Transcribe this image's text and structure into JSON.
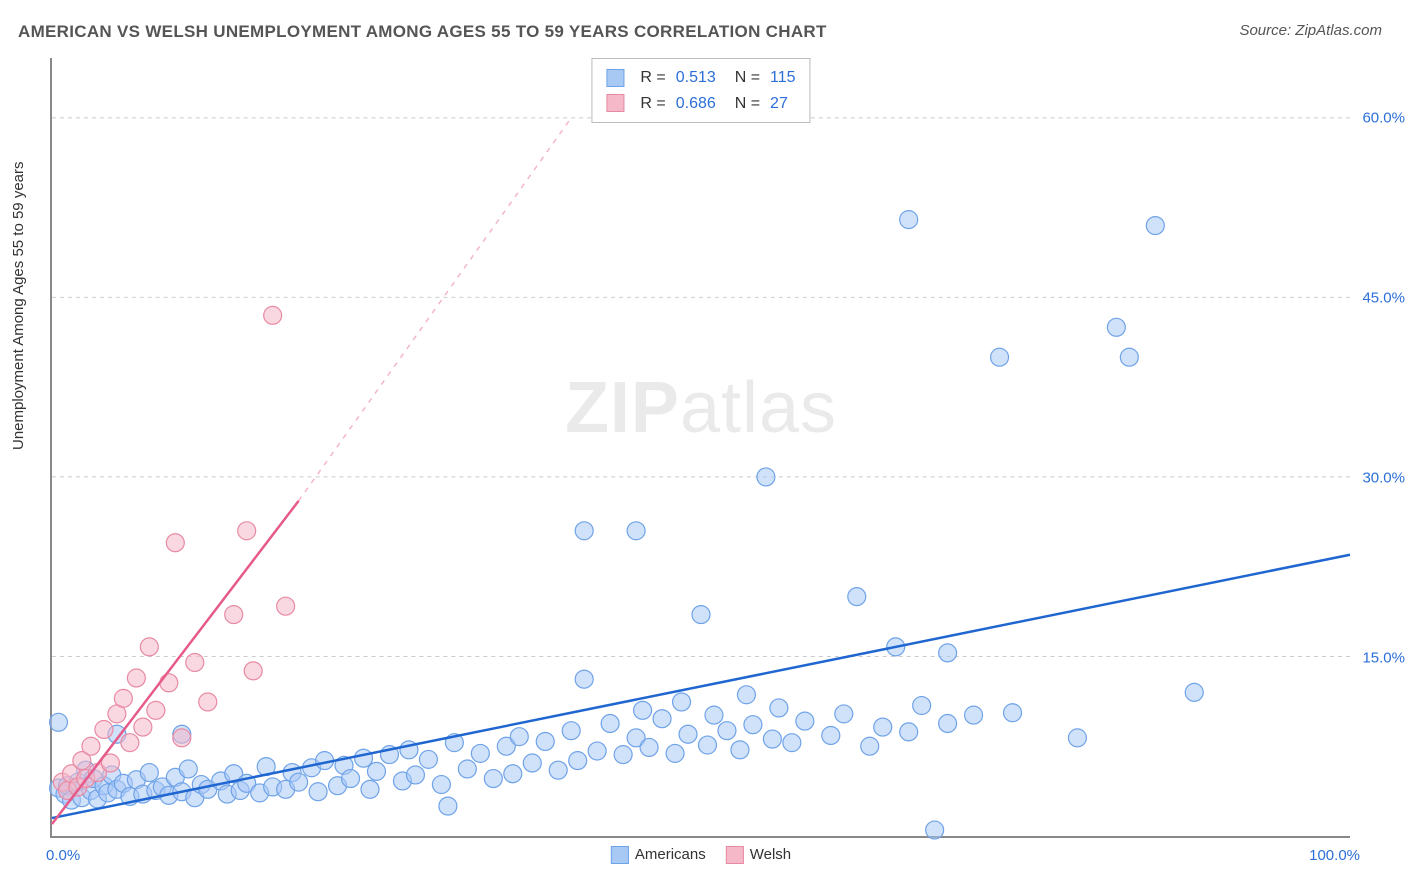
{
  "title": "AMERICAN VS WELSH UNEMPLOYMENT AMONG AGES 55 TO 59 YEARS CORRELATION CHART",
  "source": "Source: ZipAtlas.com",
  "y_axis_label": "Unemployment Among Ages 55 to 59 years",
  "watermark_bold": "ZIP",
  "watermark_light": "atlas",
  "chart": {
    "type": "scatter",
    "xlim": [
      0,
      100
    ],
    "ylim": [
      0,
      65
    ],
    "yticks": [
      15.0,
      30.0,
      45.0,
      60.0
    ],
    "ytick_labels": [
      "15.0%",
      "30.0%",
      "45.0%",
      "60.0%"
    ],
    "xtick_left": "0.0%",
    "xtick_right": "100.0%",
    "background_color": "#ffffff",
    "grid_color": "#cccccc",
    "axis_color": "#888888",
    "marker_radius": 9,
    "marker_opacity": 0.55,
    "line_width": 2.5,
    "series": [
      {
        "name": "Americans",
        "color_fill": "#a9c9f5",
        "color_stroke": "#6fa3e8",
        "line_color": "#1f66d0",
        "r": "0.513",
        "n": "115",
        "trend_start": [
          0,
          1.5
        ],
        "trend_end": [
          100,
          23.5
        ],
        "trend_dashed_after": null,
        "points": [
          [
            0.5,
            4
          ],
          [
            1,
            3.5
          ],
          [
            1.2,
            4.2
          ],
          [
            1.5,
            3
          ],
          [
            2,
            4.5
          ],
          [
            2.3,
            3.2
          ],
          [
            2.6,
            5.5
          ],
          [
            3,
            3.8
          ],
          [
            3.2,
            4.8
          ],
          [
            3.5,
            3.1
          ],
          [
            4,
            4.2
          ],
          [
            4.3,
            3.6
          ],
          [
            4.6,
            5.1
          ],
          [
            5,
            3.9
          ],
          [
            5.5,
            4.4
          ],
          [
            6,
            3.3
          ],
          [
            6.5,
            4.7
          ],
          [
            7,
            3.5
          ],
          [
            7.5,
            5.3
          ],
          [
            8,
            3.8
          ],
          [
            8.5,
            4.1
          ],
          [
            9,
            3.4
          ],
          [
            9.5,
            4.9
          ],
          [
            10,
            3.7
          ],
          [
            10.5,
            5.6
          ],
          [
            11,
            3.2
          ],
          [
            11.5,
            4.3
          ],
          [
            12,
            3.9
          ],
          [
            13,
            4.6
          ],
          [
            13.5,
            3.5
          ],
          [
            14,
            5.2
          ],
          [
            14.5,
            3.8
          ],
          [
            15,
            4.4
          ],
          [
            16,
            3.6
          ],
          [
            16.5,
            5.8
          ],
          [
            17,
            4.1
          ],
          [
            18,
            3.9
          ],
          [
            18.5,
            5.3
          ],
          [
            19,
            4.5
          ],
          [
            20,
            5.7
          ],
          [
            20.5,
            3.7
          ],
          [
            21,
            6.3
          ],
          [
            22,
            4.2
          ],
          [
            22.5,
            5.9
          ],
          [
            23,
            4.8
          ],
          [
            24,
            6.5
          ],
          [
            24.5,
            3.9
          ],
          [
            25,
            5.4
          ],
          [
            26,
            6.8
          ],
          [
            27,
            4.6
          ],
          [
            27.5,
            7.2
          ],
          [
            28,
            5.1
          ],
          [
            29,
            6.4
          ],
          [
            30,
            4.3
          ],
          [
            30.5,
            2.5
          ],
          [
            31,
            7.8
          ],
          [
            32,
            5.6
          ],
          [
            33,
            6.9
          ],
          [
            34,
            4.8
          ],
          [
            35,
            7.5
          ],
          [
            35.5,
            5.2
          ],
          [
            36,
            8.3
          ],
          [
            37,
            6.1
          ],
          [
            38,
            7.9
          ],
          [
            39,
            5.5
          ],
          [
            40,
            8.8
          ],
          [
            40.5,
            6.3
          ],
          [
            41,
            13.1
          ],
          [
            42,
            7.1
          ],
          [
            43,
            9.4
          ],
          [
            44,
            6.8
          ],
          [
            45,
            8.2
          ],
          [
            45.5,
            10.5
          ],
          [
            46,
            7.4
          ],
          [
            47,
            9.8
          ],
          [
            48,
            6.9
          ],
          [
            48.5,
            11.2
          ],
          [
            49,
            8.5
          ],
          [
            50,
            18.5
          ],
          [
            50.5,
            7.6
          ],
          [
            51,
            10.1
          ],
          [
            52,
            8.8
          ],
          [
            53,
            7.2
          ],
          [
            53.5,
            11.8
          ],
          [
            54,
            9.3
          ],
          [
            55,
            30
          ],
          [
            55.5,
            8.1
          ],
          [
            56,
            10.7
          ],
          [
            57,
            7.8
          ],
          [
            58,
            9.6
          ],
          [
            60,
            8.4
          ],
          [
            61,
            10.2
          ],
          [
            62,
            20
          ],
          [
            63,
            7.5
          ],
          [
            64,
            9.1
          ],
          [
            65,
            15.8
          ],
          [
            66,
            8.7
          ],
          [
            67,
            10.9
          ],
          [
            68,
            0.5
          ],
          [
            69,
            9.4
          ],
          [
            73,
            40
          ],
          [
            74,
            10.3
          ],
          [
            79,
            8.2
          ],
          [
            82,
            42.5
          ],
          [
            83,
            40
          ],
          [
            85,
            51
          ],
          [
            88,
            12
          ],
          [
            66,
            51.5
          ],
          [
            45,
            25.5
          ],
          [
            10,
            8.5
          ],
          [
            5,
            8.5
          ],
          [
            0.5,
            9.5
          ],
          [
            41,
            25.5
          ],
          [
            69,
            15.3
          ],
          [
            71,
            10.1
          ]
        ]
      },
      {
        "name": "Welsh",
        "color_fill": "#f5b8c8",
        "color_stroke": "#e88aa3",
        "line_color": "#e65a8a",
        "r": "0.686",
        "n": "27",
        "trend_start": [
          0,
          1
        ],
        "trend_end": [
          19,
          28
        ],
        "trend_dashed_after": [
          40,
          60
        ],
        "points": [
          [
            0.8,
            4.5
          ],
          [
            1.2,
            3.8
          ],
          [
            1.5,
            5.2
          ],
          [
            2,
            4.1
          ],
          [
            2.3,
            6.3
          ],
          [
            2.6,
            4.8
          ],
          [
            3,
            7.5
          ],
          [
            3.5,
            5.3
          ],
          [
            4,
            8.9
          ],
          [
            4.5,
            6.1
          ],
          [
            5,
            10.2
          ],
          [
            5.5,
            11.5
          ],
          [
            6,
            7.8
          ],
          [
            6.5,
            13.2
          ],
          [
            7,
            9.1
          ],
          [
            7.5,
            15.8
          ],
          [
            8,
            10.5
          ],
          [
            9,
            12.8
          ],
          [
            9.5,
            24.5
          ],
          [
            10,
            8.2
          ],
          [
            11,
            14.5
          ],
          [
            12,
            11.2
          ],
          [
            14,
            18.5
          ],
          [
            15,
            25.5
          ],
          [
            15.5,
            13.8
          ],
          [
            17,
            43.5
          ],
          [
            18,
            19.2
          ]
        ]
      }
    ]
  },
  "bottom_legend": [
    {
      "label": "Americans",
      "fill": "#a9c9f5",
      "stroke": "#6fa3e8"
    },
    {
      "label": "Welsh",
      "fill": "#f5b8c8",
      "stroke": "#e88aa3"
    }
  ]
}
